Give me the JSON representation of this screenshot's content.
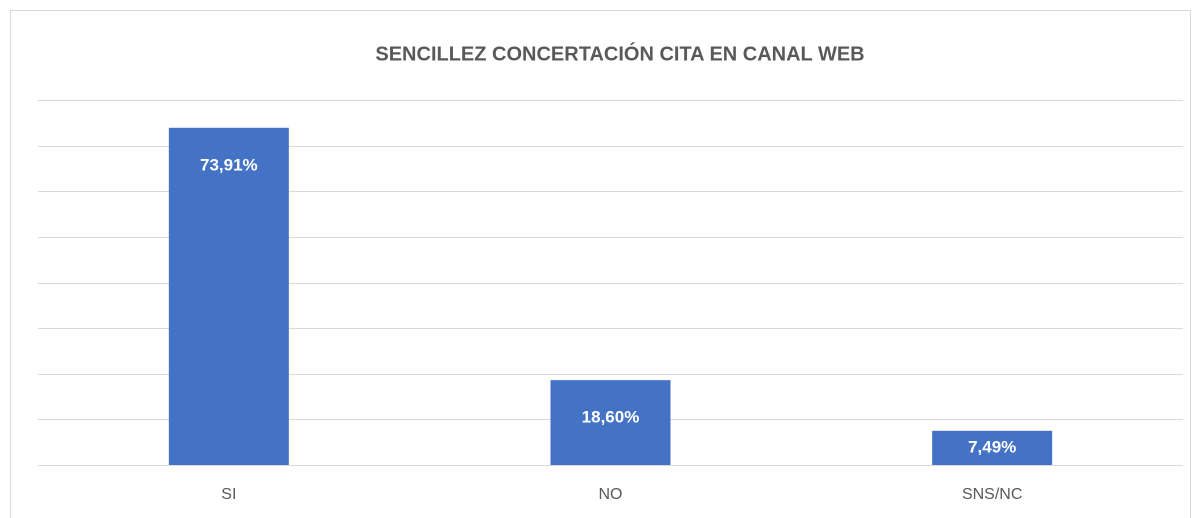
{
  "chart_data": {
    "type": "bar",
    "title": "SENCILLEZ CONCERTACIÓN CITA EN CANAL WEB",
    "categories": [
      "SI",
      "NO",
      "SNS/NC"
    ],
    "values": [
      73.91,
      18.6,
      7.49
    ],
    "value_labels": [
      "73,91%",
      "18,60%",
      "7,49%"
    ],
    "color": "#4472c4",
    "ylim": [
      0,
      80
    ],
    "yticks": [
      0,
      10,
      20,
      30,
      40,
      50,
      60,
      70,
      80
    ],
    "grid": true
  }
}
